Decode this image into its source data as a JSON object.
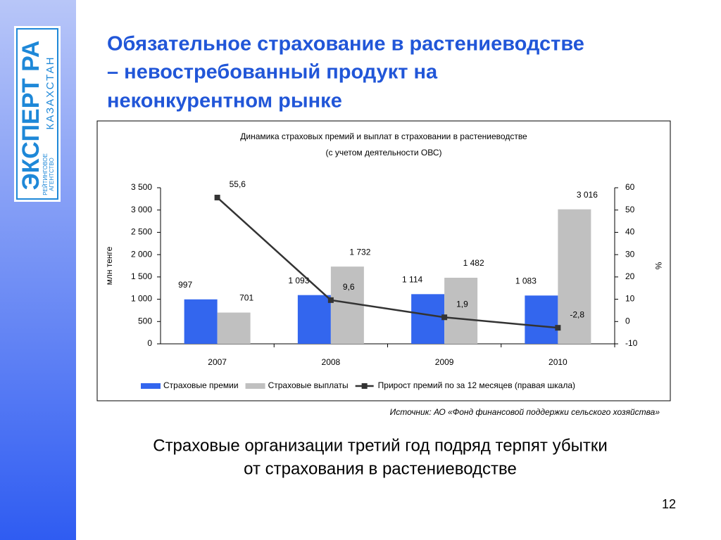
{
  "logo": {
    "name": "ЭКСПЕРТ РА",
    "country": "КАЗАХСТАН",
    "tagline": [
      "РЕЙТИНГОВОЕ",
      "АГЕНТСТВО"
    ]
  },
  "header": {
    "title_lines": [
      "Обязательное страхование в растениеводстве",
      "– невостребованный продукт на",
      "неконкурентном рынке"
    ]
  },
  "chart_data": {
    "type": "bar",
    "title": "Динамика страховых премий и выплат в страховании в растениеводстве",
    "subtitle": "(с учетом деятельности ОВС)",
    "y_label": "млн тенге",
    "y2_label": "%",
    "categories": [
      "2007",
      "2008",
      "2009",
      "2010"
    ],
    "series": [
      {
        "name": "Страховые премии",
        "color": "#3366ee",
        "type": "bar",
        "values": [
          997,
          1093,
          1114,
          1083
        ],
        "value_labels": [
          "997",
          "1 093",
          "1 114",
          "1 083"
        ]
      },
      {
        "name": "Страховые выплаты",
        "color": "#c0c0c0",
        "type": "bar",
        "values": [
          701,
          1732,
          1482,
          3016
        ],
        "value_labels": [
          "701",
          "1 732",
          "1 482",
          "3 016"
        ]
      },
      {
        "name": "Прирост премий по за 12 месяцев (правая шкала)",
        "color": "#333333",
        "type": "line",
        "axis": "y2",
        "values": [
          55.6,
          9.6,
          1.9,
          -2.8
        ],
        "value_labels": [
          "55,6",
          "9,6",
          "1,9",
          "-2,8"
        ]
      }
    ],
    "ylim": [
      0,
      3500
    ],
    "yticks": [
      0,
      500,
      {
        "value": 1000,
        "label": "1 000"
      },
      {
        "value": 1500,
        "label": "1 500"
      },
      {
        "value": 2000,
        "label": "2 000"
      },
      {
        "value": 2500,
        "label": "2 500"
      },
      {
        "value": 3000,
        "label": "3 000"
      },
      {
        "value": 3500,
        "label": "3 500"
      }
    ],
    "y2lim": [
      -10,
      60
    ],
    "y2ticks": [
      -10,
      0,
      10,
      20,
      30,
      40,
      50,
      60
    ],
    "grid": false,
    "legend": "bottom"
  },
  "source": "Источник: АО «Фонд финансовой поддержки сельского хозяйства»",
  "conclusion": [
    "Страховые организации третий год подряд терпят убытки",
    "от страхования в растениеводстве"
  ],
  "page_number": "12"
}
